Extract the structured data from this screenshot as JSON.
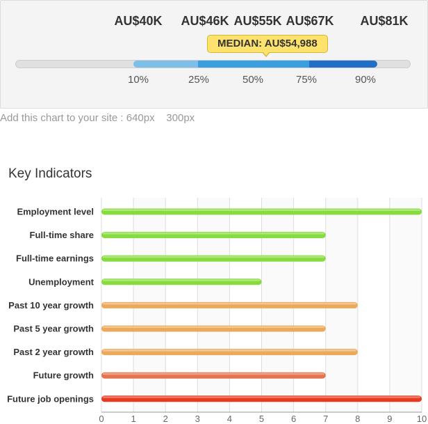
{
  "salary": {
    "values": [
      "AU$40K",
      "AU$46K",
      "AU$55K",
      "AU$67K",
      "AU$81K"
    ],
    "percentiles": [
      "10%",
      "25%",
      "50%",
      "75%",
      "90%"
    ],
    "median_label": "MEDIAN: AU$54,988",
    "colors": [
      "#7dbfe8",
      "#3a9fe0",
      "#1f6fc8"
    ]
  },
  "embed": {
    "text": "Add this chart to your site : 640px",
    "size2": "300px"
  },
  "section_title": "Key Indicators",
  "chart_data": {
    "type": "bar",
    "orientation": "horizontal",
    "categories": [
      "Employment level",
      "Full-time share",
      "Full-time earnings",
      "Unemployment",
      "Past 10 year growth",
      "Past 5 year growth",
      "Past 2 year growth",
      "Future growth",
      "Future job openings"
    ],
    "values": [
      10,
      7,
      7,
      5,
      8,
      7,
      8,
      7,
      10
    ],
    "colors": [
      "#86dc3c",
      "#86dc3c",
      "#86dc3c",
      "#86dc3c",
      "#eca95a",
      "#eca95a",
      "#eca95a",
      "#e4744e",
      "#e83a1e"
    ],
    "xlim": [
      0,
      10
    ],
    "xticks": [
      "0",
      "1",
      "2",
      "3",
      "4",
      "5",
      "6",
      "7",
      "8",
      "9",
      "10"
    ],
    "grid": true
  }
}
